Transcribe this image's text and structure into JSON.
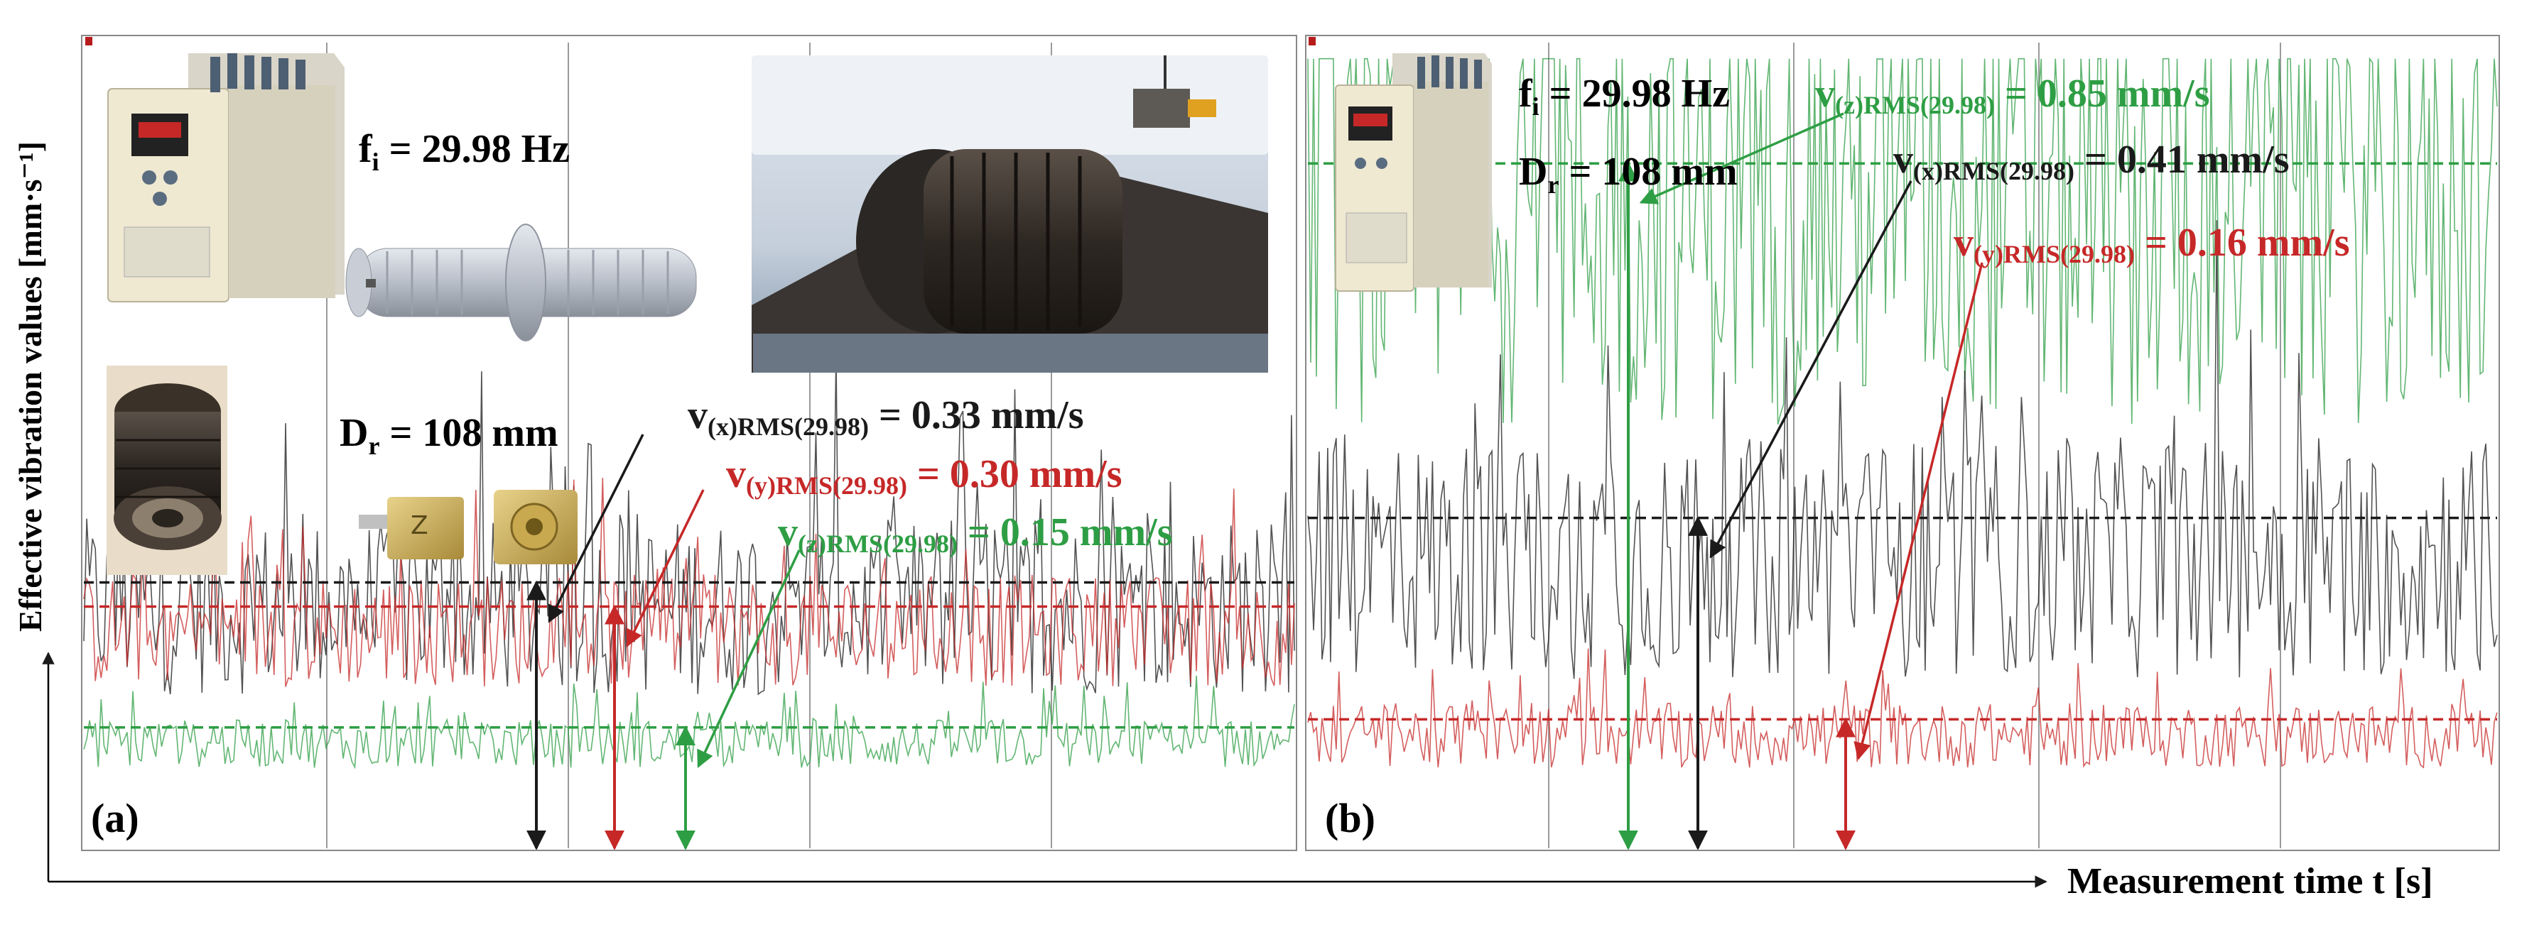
{
  "figure": {
    "y_axis_label": "Effective vibration values [mm·s⁻¹]",
    "x_axis_label": "Measurement time t [s]"
  },
  "colors": {
    "x": "#1a1a1a",
    "y": "#c62828",
    "z": "#2e9e44",
    "grid": "#9a9a9a"
  },
  "panels": [
    {
      "id": "a",
      "label": "(a)",
      "fi_symbol": "f",
      "fi_sub": "i",
      "fi_value": " = 29.98 Hz",
      "dr_symbol": "D",
      "dr_sub": "r",
      "dr_value": " = 108 mm",
      "annotations": [
        {
          "axis": "x",
          "prefix": "v",
          "sub": "(x)RMS(29.98)",
          "value": " = 0.33 mm/s"
        },
        {
          "axis": "y",
          "prefix": "v",
          "sub": "(y)RMS(29.98)",
          "value": " = 0.30 mm/s"
        },
        {
          "axis": "z",
          "prefix": "v",
          "sub": "(z)RMS(29.98)",
          "value": " = 0.15 mm/s"
        }
      ]
    },
    {
      "id": "b",
      "label": "(b)",
      "fi_symbol": "f",
      "fi_sub": "i",
      "fi_value": " = 29.98 Hz",
      "dr_symbol": "D",
      "dr_sub": "r",
      "dr_value": " = 108 mm",
      "annotations": [
        {
          "axis": "z",
          "prefix": "v",
          "sub": "(z)RMS(29.98)",
          "value": " = 0.85 mm/s"
        },
        {
          "axis": "x",
          "prefix": "v",
          "sub": "(x)RMS(29.98)",
          "value": " = 0.41 mm/s"
        },
        {
          "axis": "y",
          "prefix": "v",
          "sub": "(y)RMS(29.98)",
          "value": " = 0.16 mm/s"
        }
      ]
    }
  ],
  "chart_data": [
    {
      "type": "line",
      "panel": "a",
      "xlabel": "Measurement time t [s]",
      "ylabel": "Effective vibration values [mm·s⁻¹]",
      "series": [
        {
          "axis": "x",
          "rms": 0.33,
          "mean_level": 0.3,
          "amplitude": 0.22
        },
        {
          "axis": "y",
          "rms": 0.3,
          "mean_level": 0.27,
          "amplitude": 0.14
        },
        {
          "axis": "z",
          "rms": 0.15,
          "mean_level": 0.13,
          "amplitude": 0.06
        }
      ],
      "grid": true
    },
    {
      "type": "line",
      "panel": "b",
      "xlabel": "Measurement time t [s]",
      "ylabel": "Effective vibration values [mm·s⁻¹]",
      "series": [
        {
          "axis": "z",
          "rms": 0.85,
          "mean_level": 0.8,
          "amplitude": 0.55
        },
        {
          "axis": "x",
          "rms": 0.41,
          "mean_level": 0.36,
          "amplitude": 0.3
        },
        {
          "axis": "y",
          "rms": 0.16,
          "mean_level": 0.14,
          "amplitude": 0.08
        }
      ],
      "grid": true
    }
  ]
}
